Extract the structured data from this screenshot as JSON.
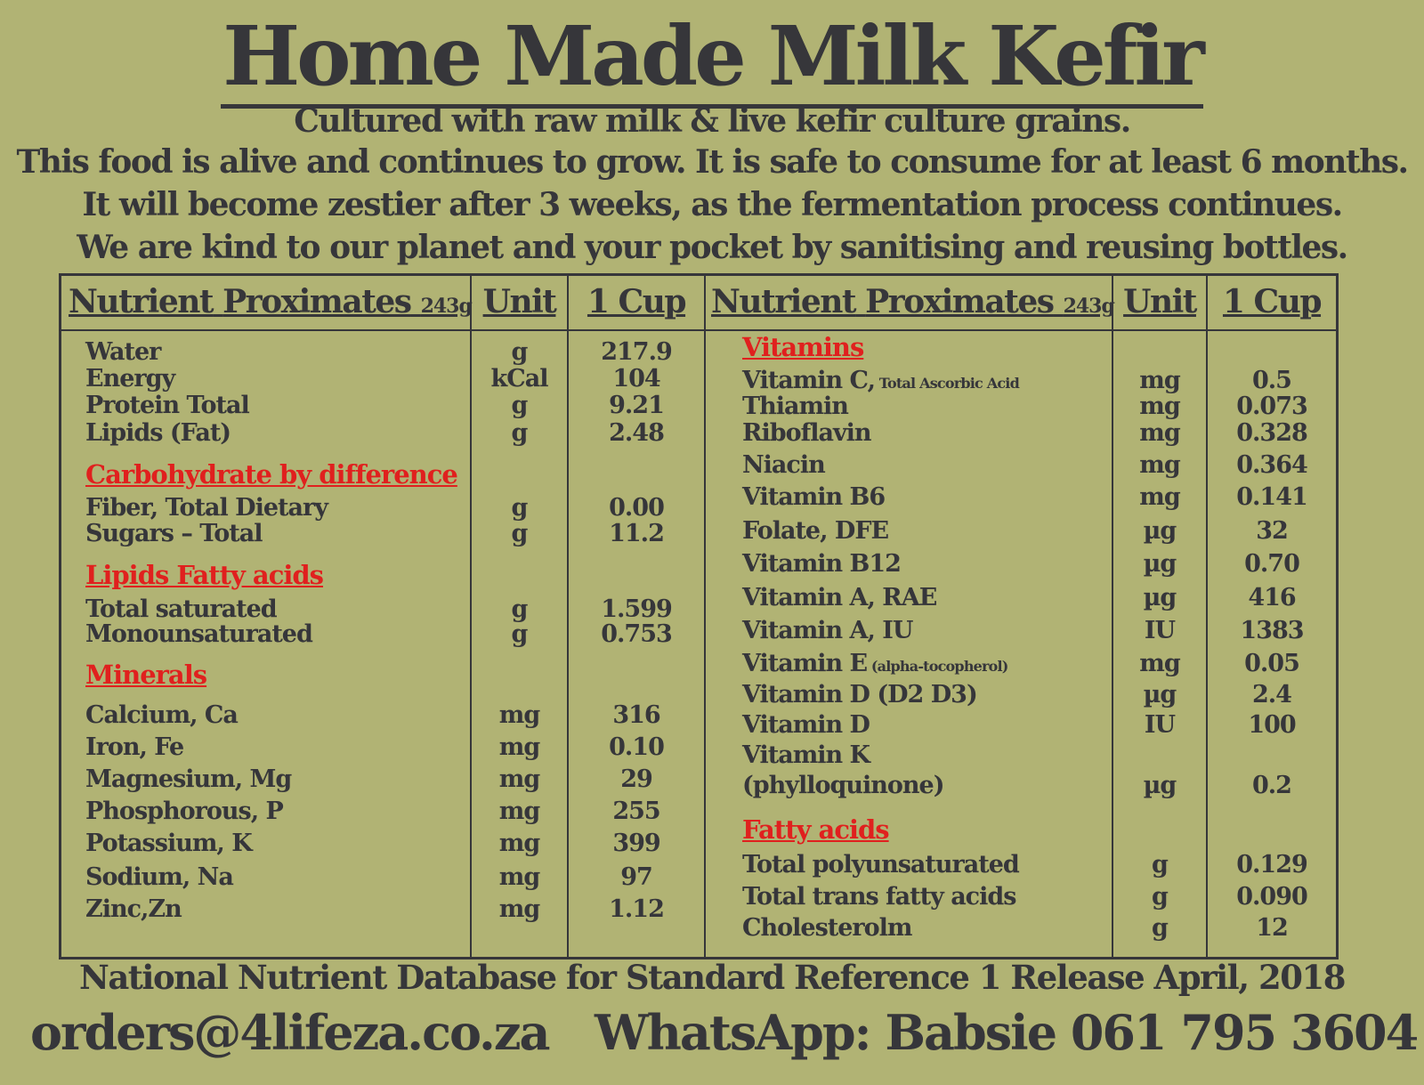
{
  "title": "Home Made Milk Kefir",
  "subtitle_lines": [
    "Cultured with raw milk & live kefir culture grains.",
    "This food is alive and continues to grow. It is safe to consume for at least 6  months.",
    "It will become zestier after 3 weeks, as the fermentation process continues.",
    "We are kind to our planet and your pocket by sanitising and reusing bottles."
  ],
  "table": {
    "header": {
      "nutrient": "Nutrient",
      "proximates": "Proximates",
      "weight": "243g",
      "unit": "Unit",
      "cup": "1 Cup"
    },
    "left": [
      {
        "name": "Water",
        "unit": "g",
        "cup": "217.9"
      },
      {
        "name": "Energy",
        "unit": "kCal",
        "cup": "104"
      },
      {
        "name": "Protein Total",
        "unit": "g",
        "cup": "9.21"
      },
      {
        "name": "Lipids (Fat)",
        "unit": "g",
        "cup": "2.48"
      },
      {
        "heading": "Carbohydrate by difference"
      },
      {
        "name": "Fiber, Total Dietary",
        "unit": "g",
        "cup": "0.00"
      },
      {
        "name": "Sugars – Total",
        "unit": "g",
        "cup": "11.2"
      },
      {
        "heading": "Lipids Fatty acids"
      },
      {
        "name": "Total saturated",
        "unit": "g",
        "cup": "1.599"
      },
      {
        "name": "Monounsaturated",
        "unit": "g",
        "cup": "0.753"
      },
      {
        "heading": "Minerals"
      },
      {
        "name": "Calcium, Ca",
        "unit": "mg",
        "cup": "316"
      },
      {
        "name": "Iron, Fe",
        "unit": "mg",
        "cup": "0.10"
      },
      {
        "name": "Magnesium, Mg",
        "unit": "mg",
        "cup": "29"
      },
      {
        "name": "Phosphorous, P",
        "unit": "mg",
        "cup": "255"
      },
      {
        "name": "Potassium, K",
        "unit": "mg",
        "cup": "399"
      },
      {
        "name": "Sodium, Na",
        "unit": "mg",
        "cup": "97"
      },
      {
        "name": "Zinc,Zn",
        "unit": "mg",
        "cup": "1.12"
      }
    ],
    "right": [
      {
        "heading": "Vitamins"
      },
      {
        "name": "Vitamin C,",
        "note": " Total Ascorbic Acid",
        "unit": "mg",
        "cup": "0.5"
      },
      {
        "name": "Thiamin",
        "unit": "mg",
        "cup": "0.073"
      },
      {
        "name": "Riboflavin",
        "unit": "mg",
        "cup": "0.328"
      },
      {
        "name": "Niacin",
        "unit": "mg",
        "cup": "0.364"
      },
      {
        "name": "Vitamin B6",
        "unit": "mg",
        "cup": "0.141"
      },
      {
        "name": "Folate, DFE",
        "unit": "µg",
        "cup": "32"
      },
      {
        "name": "Vitamin B12",
        "unit": "µg",
        "cup": "0.70"
      },
      {
        "name": "Vitamin A, RAE",
        "unit": "µg",
        "cup": "416"
      },
      {
        "name": "Vitamin A, IU",
        "unit": "IU",
        "cup": "1383"
      },
      {
        "name": "Vitamin E",
        "note": " (alpha-tocopherol)",
        "unit": "mg",
        "cup": "0.05"
      },
      {
        "name": "Vitamin D (D2    D3)",
        "unit": "µg",
        "cup": "2.4"
      },
      {
        "name": "Vitamin D",
        "unit": "IU",
        "cup": "100"
      },
      {
        "name": "Vitamin K"
      },
      {
        "name": "(phylloquinone)",
        "unit": "µg",
        "cup": "0.2"
      },
      {
        "heading": "Fatty acids"
      },
      {
        "name": "Total polyunsaturated",
        "unit": "g",
        "cup": "0.129"
      },
      {
        "name": "Total trans fatty acids",
        "unit": "g",
        "cup": "0.090"
      },
      {
        "name": "Cholesterolm",
        "unit": "g",
        "cup": "12"
      }
    ]
  },
  "footer": "National Nutrient Database for Standard Reference 1 Release April, 2018",
  "email": "orders@4lifeza.co.za",
  "whatsapp": "WhatsApp: Babsie  061 795 3604",
  "colors": {
    "background": "#b1b374",
    "text": "#36363a",
    "heading_red": "#e0201e"
  }
}
